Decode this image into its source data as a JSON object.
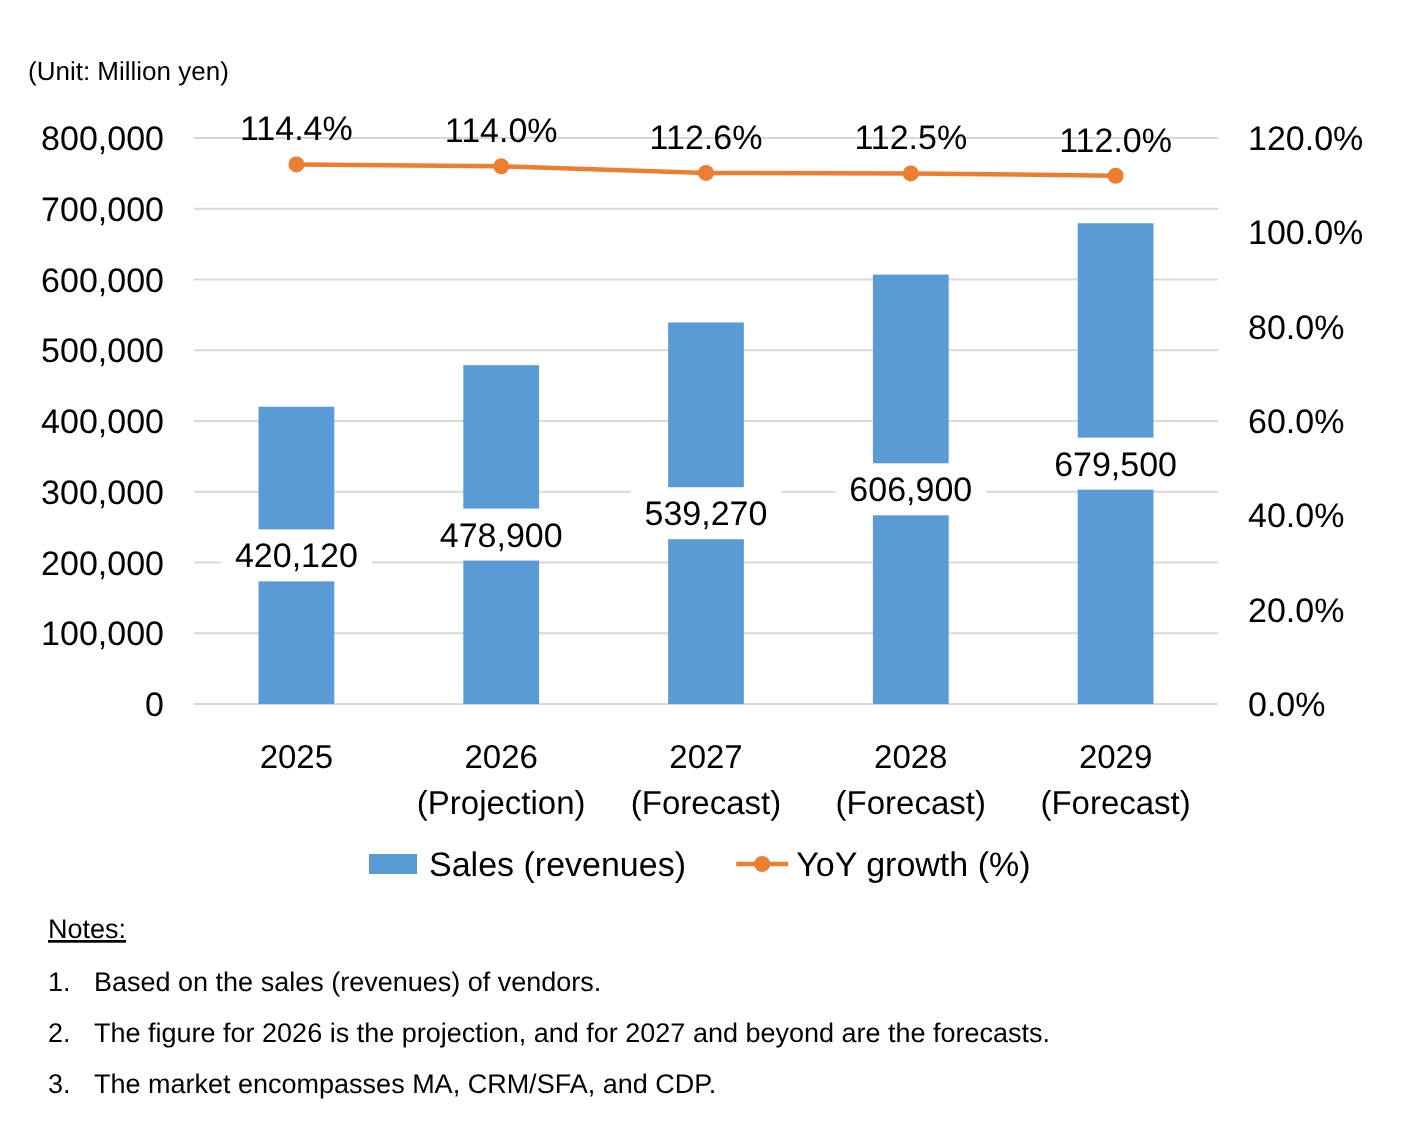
{
  "chart_data": {
    "type": "bar",
    "ylabel": "(Unit: Million yen)",
    "categories": [
      "2025",
      "2026\n(Projection)",
      "2027\n(Forecast)",
      "2028\n(Forecast)",
      "2029\n(Forecast)"
    ],
    "series": [
      {
        "name": "Sales (revenues)",
        "color": "#5b9bd5",
        "values": [
          420120,
          478900,
          539270,
          606900,
          679500
        ],
        "value_labels": [
          "420,120",
          "478,900",
          "539,270",
          "606,900",
          "679,500"
        ]
      },
      {
        "name": "YoY growth (%)",
        "type": "line",
        "axis": "y2",
        "color": "#ed7d31",
        "values": [
          114.4,
          114.0,
          112.6,
          112.5,
          112.0
        ],
        "value_labels": [
          "114.4%",
          "114.0%",
          "112.6%",
          "112.5%",
          "112.0%"
        ]
      }
    ],
    "ylim": [
      0,
      800000
    ],
    "yticks": [
      0,
      {
        "value": 100000,
        "label": "100,000"
      },
      {
        "value": 200000,
        "label": "200,000"
      },
      {
        "value": 300000,
        "label": "300,000"
      },
      {
        "value": 400000,
        "label": "400,000"
      },
      {
        "value": 500000,
        "label": "500,000"
      },
      {
        "value": 600000,
        "label": "600,000"
      },
      {
        "value": 700000,
        "label": "700,000"
      },
      {
        "value": 800000,
        "label": "800,000"
      }
    ],
    "y2lim": [
      0,
      120
    ],
    "y2ticks": [
      {
        "value": 0,
        "label": "0.0%"
      },
      {
        "value": 20,
        "label": "20.0%"
      },
      {
        "value": 40,
        "label": "40.0%"
      },
      {
        "value": 60,
        "label": "60.0%"
      },
      {
        "value": 80,
        "label": "80.0%"
      },
      {
        "value": 100,
        "label": "100.0%"
      },
      {
        "value": 120,
        "label": "120.0%"
      }
    ],
    "grid": "y",
    "legend": "bottom",
    "marker": "circle",
    "line_style": "solid",
    "annotations": [
      "Notes:",
      "1. Based on the sales (revenues) of vendors.",
      "2. The figure for 2026 is the projection, and for 2027 and beyond are the forecasts.",
      "3. The market encompasses MA, CRM/SFA, and CDP."
    ]
  }
}
